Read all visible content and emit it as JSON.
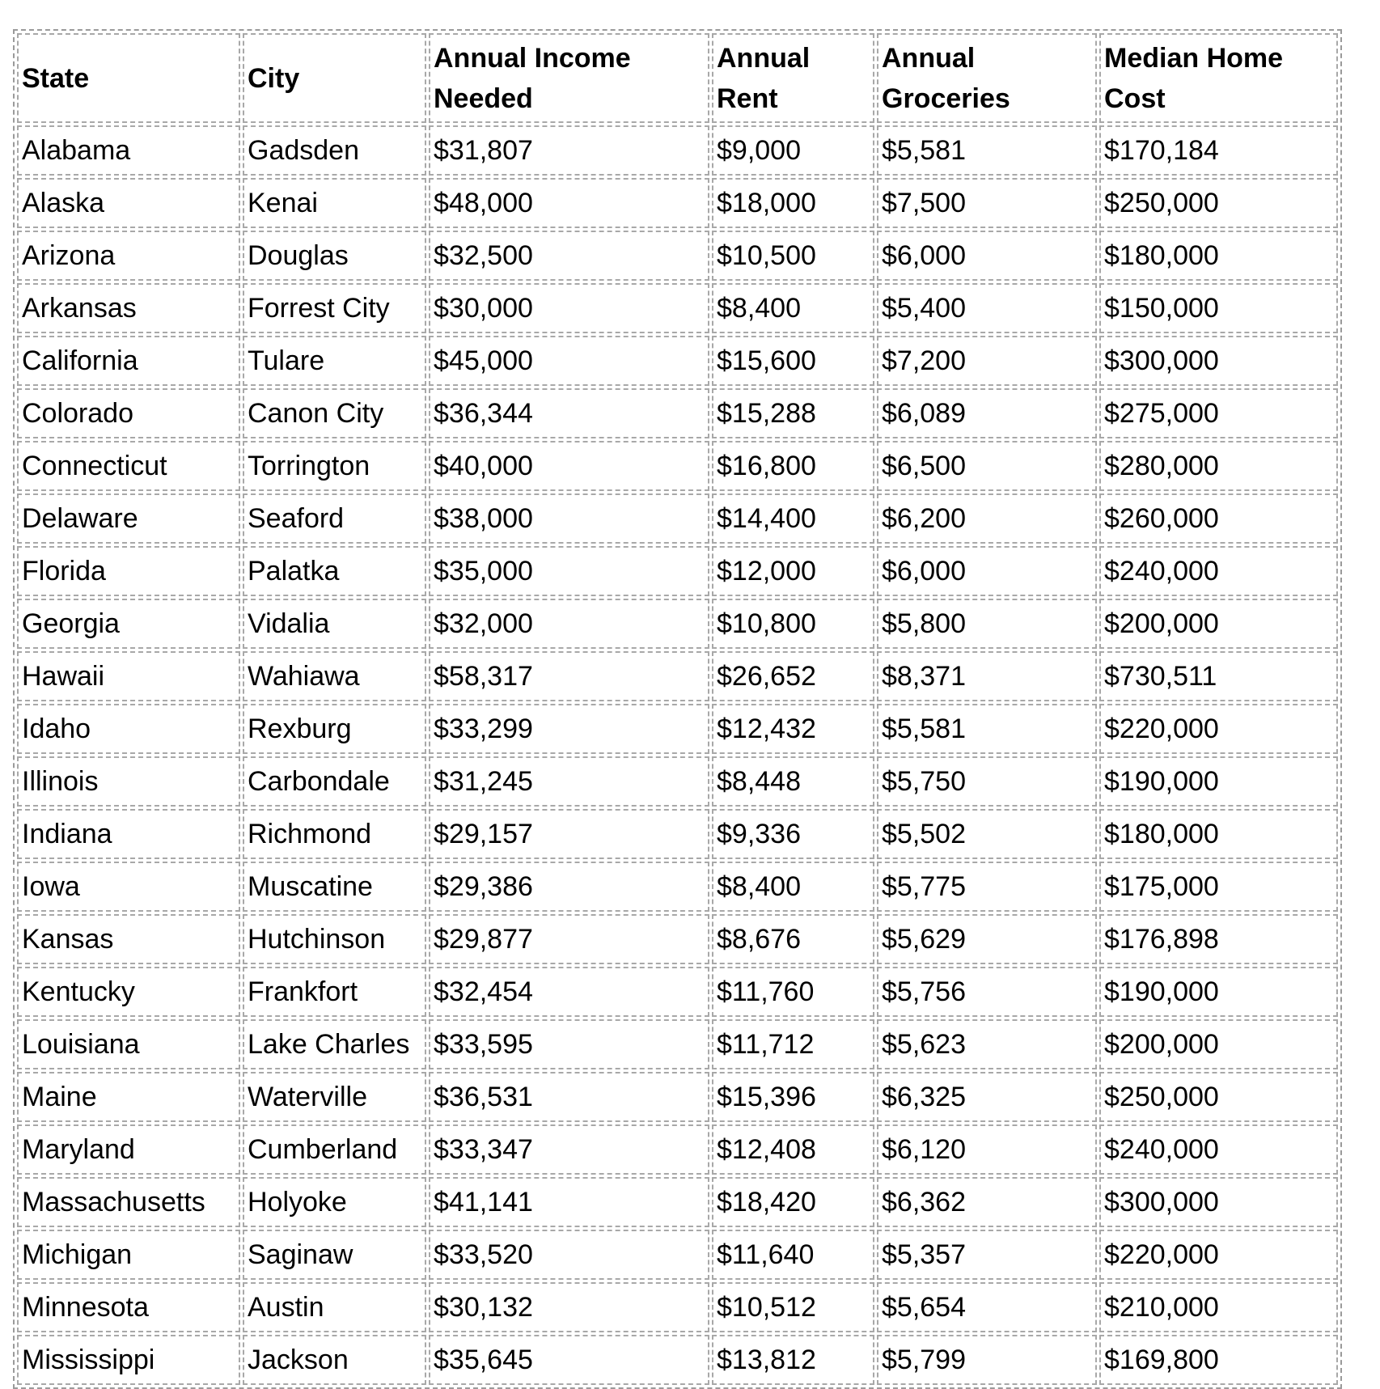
{
  "table": {
    "header": [
      "State",
      "City",
      "Annual Income Needed",
      "Annual Rent",
      "Annual Groceries",
      "Median Home Cost"
    ],
    "rows": [
      [
        "Alabama",
        "Gadsden",
        "$31,807",
        "$9,000",
        "$5,581",
        "$170,184"
      ],
      [
        "Alaska",
        "Kenai",
        "$48,000",
        "$18,000",
        "$7,500",
        "$250,000"
      ],
      [
        "Arizona",
        "Douglas",
        "$32,500",
        "$10,500",
        "$6,000",
        "$180,000"
      ],
      [
        "Arkansas",
        "Forrest City",
        "$30,000",
        "$8,400",
        "$5,400",
        "$150,000"
      ],
      [
        "California",
        "Tulare",
        "$45,000",
        "$15,600",
        "$7,200",
        "$300,000"
      ],
      [
        "Colorado",
        "Canon City",
        "$36,344",
        "$15,288",
        "$6,089",
        "$275,000"
      ],
      [
        "Connecticut",
        "Torrington",
        "$40,000",
        "$16,800",
        "$6,500",
        "$280,000"
      ],
      [
        "Delaware",
        "Seaford",
        "$38,000",
        "$14,400",
        "$6,200",
        "$260,000"
      ],
      [
        "Florida",
        "Palatka",
        "$35,000",
        "$12,000",
        "$6,000",
        "$240,000"
      ],
      [
        "Georgia",
        "Vidalia",
        "$32,000",
        "$10,800",
        "$5,800",
        "$200,000"
      ],
      [
        "Hawaii",
        "Wahiawa",
        "$58,317",
        "$26,652",
        "$8,371",
        "$730,511"
      ],
      [
        "Idaho",
        "Rexburg",
        "$33,299",
        "$12,432",
        "$5,581",
        "$220,000"
      ],
      [
        "Illinois",
        "Carbondale",
        "$31,245",
        "$8,448",
        "$5,750",
        "$190,000"
      ],
      [
        "Indiana",
        "Richmond",
        "$29,157",
        "$9,336",
        "$5,502",
        "$180,000"
      ],
      [
        "Iowa",
        "Muscatine",
        "$29,386",
        "$8,400",
        "$5,775",
        "$175,000"
      ],
      [
        "Kansas",
        "Hutchinson",
        "$29,877",
        "$8,676",
        "$5,629",
        "$176,898"
      ],
      [
        "Kentucky",
        "Frankfort",
        "$32,454",
        "$11,760",
        "$5,756",
        "$190,000"
      ],
      [
        "Louisiana",
        "Lake Charles",
        "$33,595",
        "$11,712",
        "$5,623",
        "$200,000"
      ],
      [
        "Maine",
        "Waterville",
        "$36,531",
        "$15,396",
        "$6,325",
        "$250,000"
      ],
      [
        "Maryland",
        "Cumberland",
        "$33,347",
        "$12,408",
        "$6,120",
        "$240,000"
      ],
      [
        "Massachusetts",
        "Holyoke",
        "$41,141",
        "$18,420",
        "$6,362",
        "$300,000"
      ],
      [
        "Michigan",
        "Saginaw",
        "$33,520",
        "$11,640",
        "$5,357",
        "$220,000"
      ],
      [
        "Minnesota",
        "Austin",
        "$30,132",
        "$10,512",
        "$5,654",
        "$210,000"
      ],
      [
        "Mississippi",
        "Jackson",
        "$35,645",
        "$13,812",
        "$5,799",
        "$169,800"
      ]
    ]
  }
}
